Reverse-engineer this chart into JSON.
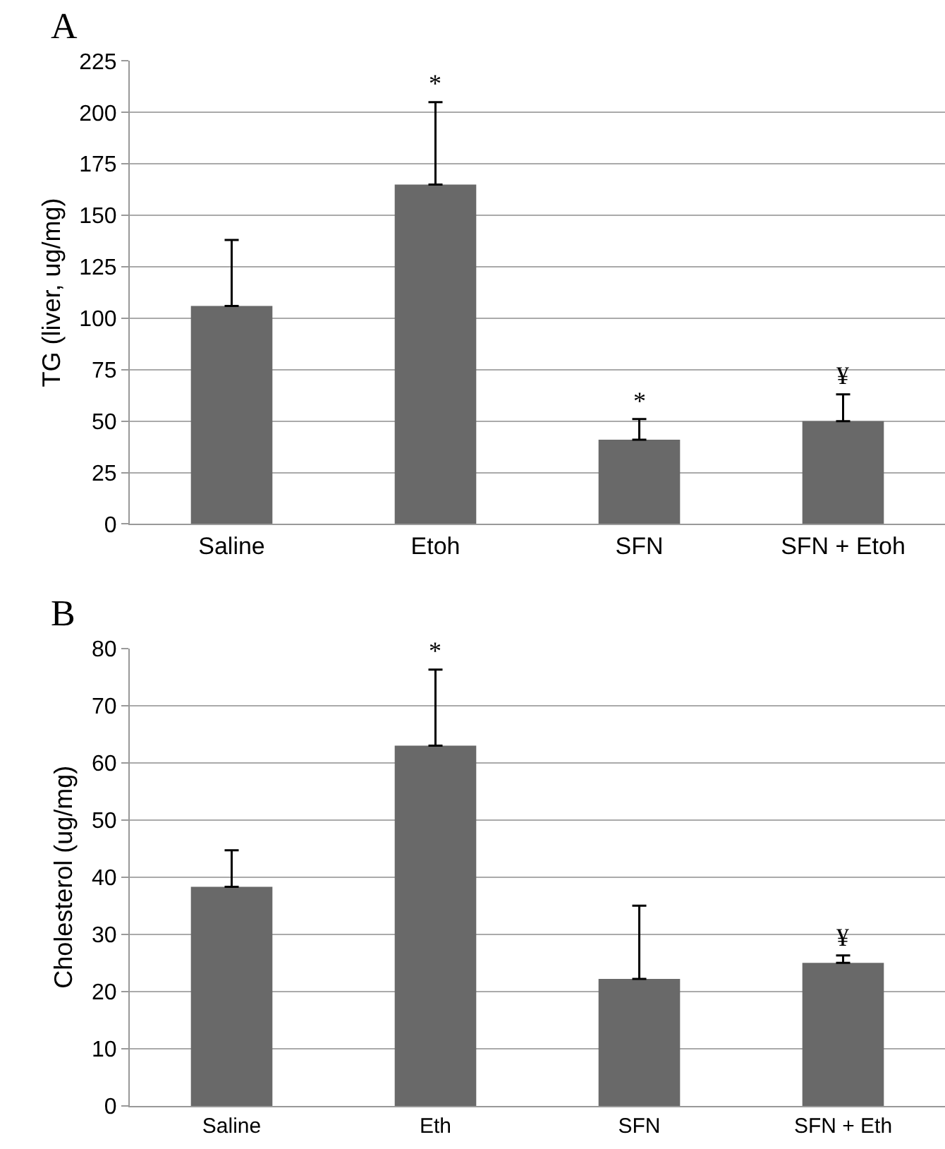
{
  "chart_data": [
    {
      "type": "bar",
      "title": "A",
      "ylabel": "TG (liver, ug/mg)",
      "categories": [
        "Saline",
        "Etoh",
        "SFN",
        "SFN + Etoh"
      ],
      "values": [
        106,
        165,
        41,
        50
      ],
      "errors": [
        [
          106,
          138
        ],
        [
          165,
          205
        ],
        [
          41,
          51
        ],
        [
          50,
          63
        ]
      ],
      "color": "#696969",
      "ylim": [
        0,
        225
      ],
      "yticks": [
        0,
        25,
        50,
        75,
        100,
        125,
        150,
        175,
        200,
        225
      ],
      "grid": "y",
      "legend": false,
      "annotations": [
        {
          "text": "*",
          "x": "Etoh",
          "y": 205
        },
        {
          "text": "*",
          "x": "SFN",
          "y": 51
        },
        {
          "text": "¥",
          "x": "SFN + Etoh",
          "y": 63
        }
      ]
    },
    {
      "type": "bar",
      "title": "B",
      "ylabel": "Cholesterol (ug/mg)",
      "categories": [
        "Saline",
        "Eth",
        "SFN",
        "SFN + Eth"
      ],
      "values": [
        38.3,
        63,
        22.2,
        25
      ],
      "errors": [
        [
          38.3,
          44.7
        ],
        [
          63,
          76.3
        ],
        [
          22.2,
          35
        ],
        [
          25,
          26.3
        ]
      ],
      "color": "#696969",
      "ylim": [
        0,
        80
      ],
      "yticks": [
        0,
        10,
        20,
        30,
        40,
        50,
        60,
        70,
        80
      ],
      "grid": "y",
      "legend": false,
      "annotations": [
        {
          "text": "*",
          "x": "Eth",
          "y": 76.3
        },
        {
          "text": "¥",
          "x": "SFN + Eth",
          "y": 26.3
        }
      ]
    }
  ]
}
